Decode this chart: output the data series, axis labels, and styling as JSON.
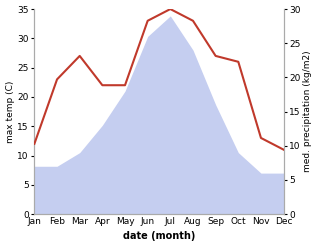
{
  "months": [
    "Jan",
    "Feb",
    "Mar",
    "Apr",
    "May",
    "Jun",
    "Jul",
    "Aug",
    "Sep",
    "Oct",
    "Nov",
    "Dec"
  ],
  "max_temp": [
    12,
    23,
    27,
    22,
    22,
    33,
    35,
    33,
    27,
    26,
    13,
    11
  ],
  "precipitation": [
    7,
    7,
    9,
    13,
    18,
    26,
    29,
    24,
    16,
    9,
    6,
    6
  ],
  "temp_color": "#c0392b",
  "precip_fill_color": "#c5cef0",
  "temp_ylim": [
    0,
    35
  ],
  "precip_ylim": [
    0,
    30
  ],
  "temp_yticks": [
    0,
    5,
    10,
    15,
    20,
    25,
    30,
    35
  ],
  "precip_yticks": [
    0,
    5,
    10,
    15,
    20,
    25,
    30
  ],
  "xlabel": "date (month)",
  "ylabel_left": "max temp (C)",
  "ylabel_right": "med. precipitation (kg/m2)",
  "background_color": "#ffffff",
  "spine_color": "#aaaaaa"
}
